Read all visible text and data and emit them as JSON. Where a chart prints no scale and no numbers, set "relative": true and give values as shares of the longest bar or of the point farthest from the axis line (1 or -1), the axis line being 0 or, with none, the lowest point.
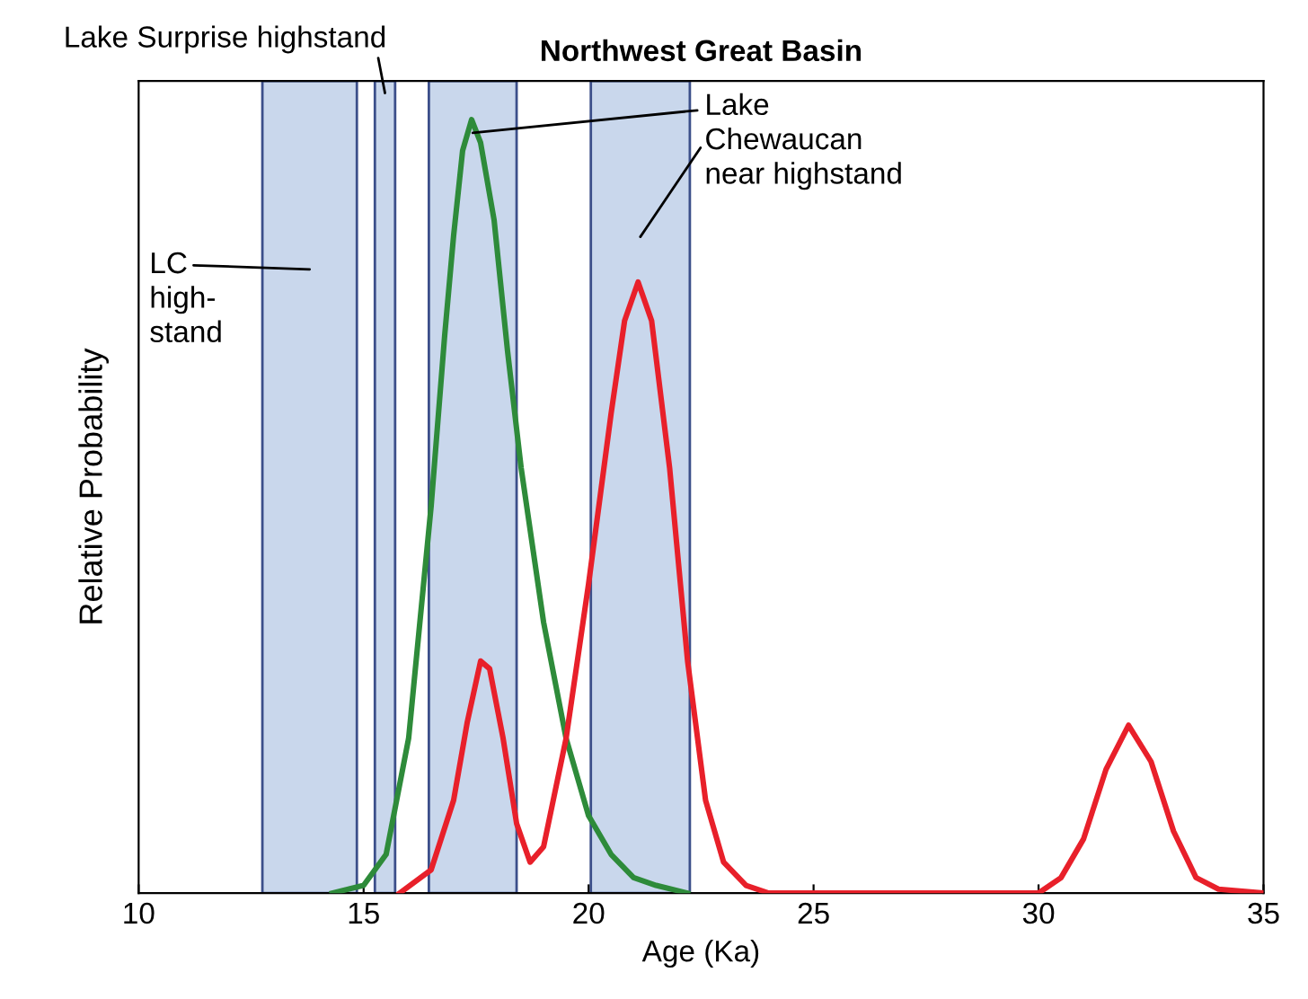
{
  "chart_data": {
    "type": "line",
    "title": "Northwest Great Basin",
    "xlabel": "Age (Ka)",
    "ylabel": "Relative Probability",
    "relative": true,
    "tick_labels": "x",
    "xlim": [
      10,
      35
    ],
    "xticks": [
      10,
      15,
      20,
      25,
      30,
      35
    ],
    "grid": false,
    "legend": false,
    "marker": "none",
    "line_style": "solid",
    "series": [
      {
        "color": "#2e8b3a",
        "x": [
          14.3,
          15.0,
          15.5,
          16.0,
          16.5,
          16.8,
          17.0,
          17.2,
          17.4,
          17.6,
          17.9,
          18.2,
          18.5,
          19.0,
          19.5,
          20.0,
          20.5,
          21.0,
          21.5,
          22.2
        ],
        "values": [
          0,
          0.01,
          0.05,
          0.2,
          0.5,
          0.72,
          0.85,
          0.96,
          1.0,
          0.97,
          0.87,
          0.7,
          0.55,
          0.35,
          0.2,
          0.1,
          0.05,
          0.02,
          0.01,
          0
        ]
      },
      {
        "color": "#e8202a",
        "x": [
          15.8,
          16.5,
          17.0,
          17.3,
          17.6,
          17.8,
          18.1,
          18.4,
          18.7,
          19.0,
          19.5,
          20.0,
          20.5,
          20.8,
          21.1,
          21.4,
          21.8,
          22.2,
          22.6,
          23.0,
          23.5,
          24.0,
          30.0,
          30.5,
          31.0,
          31.5,
          32.0,
          32.5,
          33.0,
          33.5,
          34.0,
          35.0
        ],
        "values": [
          0,
          0.03,
          0.12,
          0.22,
          0.3,
          0.29,
          0.2,
          0.09,
          0.04,
          0.06,
          0.2,
          0.4,
          0.62,
          0.74,
          0.79,
          0.74,
          0.55,
          0.3,
          0.12,
          0.04,
          0.01,
          0,
          0,
          0.02,
          0.07,
          0.16,
          0.217,
          0.17,
          0.08,
          0.02,
          0.005,
          0
        ]
      }
    ],
    "bands": [
      {
        "axis": "x",
        "from": 12.75,
        "to": 14.85,
        "label": "LC\nhigh-\nstand",
        "color": "#c9d7ec"
      },
      {
        "axis": "x",
        "from": 15.25,
        "to": 15.7,
        "label": "Lake Surprise highstand",
        "color": "#c9d7ec"
      },
      {
        "axis": "x",
        "from": 16.45,
        "to": 18.4,
        "label": "Lake\nChewaucan\nnear highstand",
        "color": "#c9d7ec"
      },
      {
        "axis": "x",
        "from": 20.05,
        "to": 22.25,
        "label": null,
        "color": "#c9d7ec"
      }
    ]
  }
}
